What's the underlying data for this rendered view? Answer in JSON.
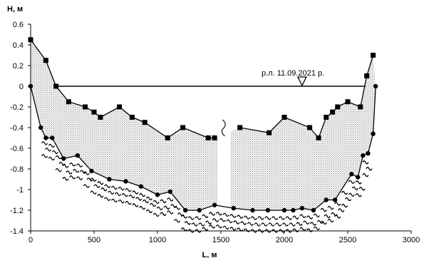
{
  "chart_data": {
    "type": "line",
    "xlabel": "L, м",
    "ylabel": "H, м",
    "xlim": [
      0,
      3000
    ],
    "ylim": [
      -1.4,
      0.6
    ],
    "x_ticks": [
      0,
      500,
      1000,
      1500,
      2000,
      2500,
      3000
    ],
    "y_ticks": [
      0.6,
      0.4,
      0.2,
      0,
      -0.2,
      -0.4,
      -0.6,
      -0.8,
      -1,
      -1.2,
      -1.4
    ],
    "grid": false,
    "annotation": "р.л. 11.09.2021 р.",
    "water_level": {
      "y": 0,
      "x_start": 200,
      "x_end": 2640,
      "marker_x": 2140
    },
    "axis_break_x": 1525,
    "series": [
      {
        "marker": "square",
        "points": [
          [
            0,
            0.45
          ],
          [
            120,
            0.25
          ],
          [
            200,
            0
          ],
          [
            300,
            -0.15
          ],
          [
            430,
            -0.2
          ],
          [
            500,
            -0.25
          ],
          [
            550,
            -0.3
          ],
          [
            700,
            -0.2
          ],
          [
            800,
            -0.3
          ],
          [
            900,
            -0.35
          ],
          [
            1080,
            -0.5
          ],
          [
            1200,
            -0.4
          ],
          [
            1400,
            -0.5
          ],
          [
            1450,
            -0.5
          ],
          [
            1650,
            -0.4
          ],
          [
            1880,
            -0.45
          ],
          [
            2000,
            -0.3
          ],
          [
            2200,
            -0.4
          ],
          [
            2270,
            -0.5
          ],
          [
            2330,
            -0.3
          ],
          [
            2380,
            -0.25
          ],
          [
            2420,
            -0.2
          ],
          [
            2500,
            -0.15
          ],
          [
            2600,
            -0.2
          ],
          [
            2650,
            0.1
          ],
          [
            2700,
            0.3
          ]
        ]
      },
      {
        "marker": "circle",
        "points": [
          [
            0,
            0
          ],
          [
            80,
            -0.4
          ],
          [
            120,
            -0.5
          ],
          [
            170,
            -0.5
          ],
          [
            260,
            -0.7
          ],
          [
            370,
            -0.67
          ],
          [
            480,
            -0.82
          ],
          [
            620,
            -0.9
          ],
          [
            750,
            -0.92
          ],
          [
            870,
            -0.97
          ],
          [
            1000,
            -1.05
          ],
          [
            1100,
            -1.02
          ],
          [
            1220,
            -1.2
          ],
          [
            1330,
            -1.2
          ],
          [
            1450,
            -1.15
          ],
          [
            1600,
            -1.18
          ],
          [
            1750,
            -1.2
          ],
          [
            1870,
            -1.2
          ],
          [
            2000,
            -1.2
          ],
          [
            2070,
            -1.2
          ],
          [
            2140,
            -1.18
          ],
          [
            2230,
            -1.2
          ],
          [
            2330,
            -1.1
          ],
          [
            2400,
            -1.1
          ],
          [
            2530,
            -0.85
          ],
          [
            2580,
            -0.88
          ],
          [
            2620,
            -0.67
          ],
          [
            2660,
            -0.65
          ],
          [
            2700,
            -0.46
          ],
          [
            2720,
            0
          ]
        ]
      }
    ]
  }
}
